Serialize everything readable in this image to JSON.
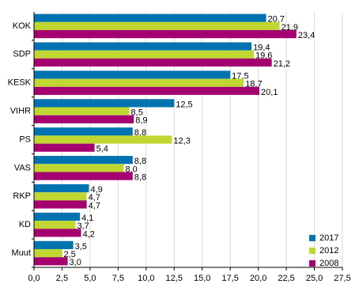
{
  "chart_data": {
    "type": "bar",
    "orientation": "horizontal",
    "categories": [
      "KOK",
      "SDP",
      "KESK",
      "VIHR",
      "PS",
      "VAS",
      "RKP",
      "KD",
      "Muut"
    ],
    "series": [
      {
        "name": "2017",
        "color": "#0073b0",
        "values": [
          20.7,
          19.4,
          17.5,
          12.5,
          8.8,
          8.8,
          4.9,
          4.1,
          3.5
        ],
        "value_labels": [
          "20,7",
          "19,4",
          "17,5",
          "12,5",
          "8,8",
          "8,8",
          "4,9",
          "4,1",
          "3,5"
        ]
      },
      {
        "name": "2012",
        "color": "#bfd730",
        "values": [
          21.9,
          19.6,
          18.7,
          8.5,
          12.3,
          8.0,
          4.7,
          3.7,
          2.5
        ],
        "value_labels": [
          "21,9",
          "19,6",
          "18,7",
          "8,5",
          "12,3",
          "8,0",
          "4,7",
          "3,7",
          "2,5"
        ]
      },
      {
        "name": "2008",
        "color": "#a4006f",
        "values": [
          23.4,
          21.2,
          20.1,
          8.9,
          5.4,
          8.8,
          4.7,
          4.2,
          3.0
        ],
        "value_labels": [
          "23,4",
          "21,2",
          "20,1",
          "8,9",
          "5,4",
          "8,8",
          "4,7",
          "4,2",
          "3,0"
        ]
      }
    ],
    "xlim": [
      0,
      27.5
    ],
    "xticks": [
      {
        "value": 0,
        "label": "0,0"
      },
      {
        "value": 2.5,
        "label": "2,5"
      },
      {
        "value": 5,
        "label": "5,0"
      },
      {
        "value": 7.5,
        "label": "7,5"
      },
      {
        "value": 10,
        "label": "10,0"
      },
      {
        "value": 12.5,
        "label": "12,5"
      },
      {
        "value": 15,
        "label": "15,0"
      },
      {
        "value": 17.5,
        "label": "17,5"
      },
      {
        "value": 20,
        "label": "20,0"
      },
      {
        "value": 22.5,
        "label": "22,5"
      },
      {
        "value": 25,
        "label": "25,0"
      },
      {
        "value": 27.5,
        "label": "27,5"
      }
    ],
    "grid": true,
    "legend": "bottom-right"
  }
}
